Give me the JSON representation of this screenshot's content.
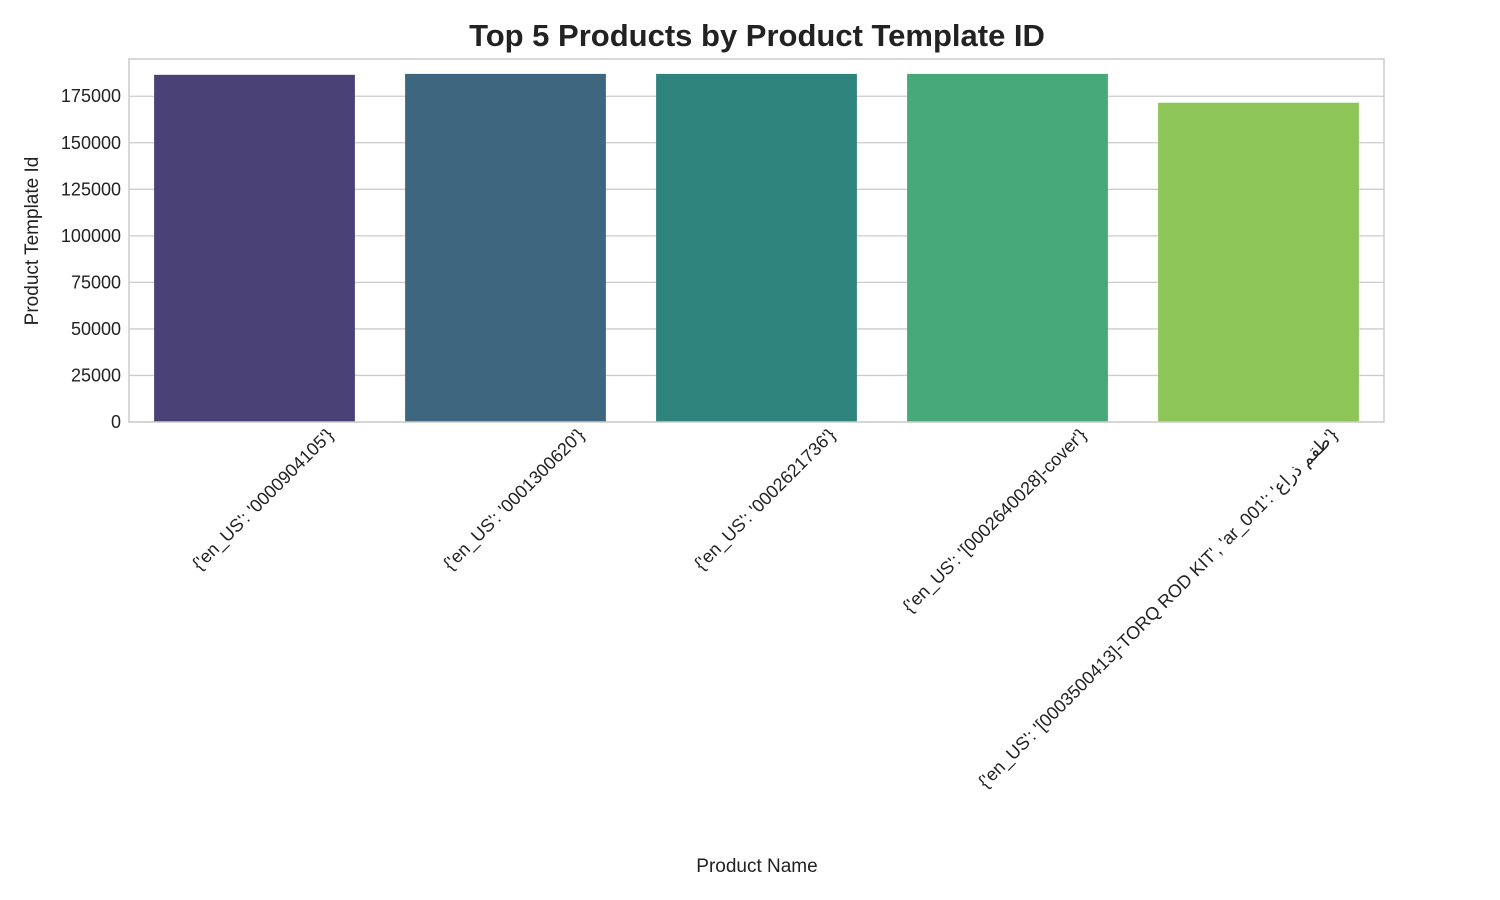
{
  "chart_data": {
    "type": "bar",
    "title": "Top 5 Products by Product Template ID",
    "xlabel": "Product Name",
    "ylabel": "Product Template Id",
    "categories": [
      "{'en_US': '0000904105'}",
      "{'en_US': '0001300620'}",
      "{'en_US': '0002621736'}",
      "{'en_US': '[0002640028]-cover'}",
      "{'en_US': '[0003500413]-TORQ ROD KIT', 'ar_001': 'طقم ذراع'}"
    ],
    "values": [
      186500,
      187000,
      187000,
      187000,
      171500
    ],
    "colors": [
      "#4a4277",
      "#3e667f",
      "#2e837d",
      "#47a87a",
      "#8dc558"
    ],
    "ylim": [
      0,
      195000
    ],
    "yticks": [
      0,
      25000,
      50000,
      75000,
      100000,
      125000,
      150000,
      175000
    ],
    "ytick_labels": [
      "0",
      "25000",
      "50000",
      "75000",
      "100000",
      "125000",
      "150000",
      "175000"
    ],
    "grid": true,
    "legend": "none"
  }
}
